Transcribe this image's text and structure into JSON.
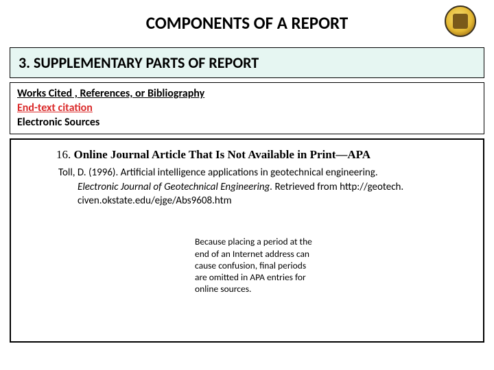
{
  "colors": {
    "background": "#ffffff",
    "text": "#000000",
    "section_bg": "#e6f6f2",
    "border": "#000000",
    "accent_red": "#da2a2a",
    "logo_gold_light": "#f8e27a",
    "logo_gold_mid": "#e4b832",
    "logo_gold_dark": "#a87a1a"
  },
  "header": {
    "title": "COMPONENTS OF A REPORT"
  },
  "section": {
    "heading": "3. SUPPLEMENTARY PARTS OF REPORT"
  },
  "subheader": {
    "line1": "Works Cited , References, or Bibliography",
    "line2": "End-text citation",
    "line3": "Electronic Sources"
  },
  "entry": {
    "number": "16.  ",
    "title": "Online Journal Article That Is Not Available in Print—APA",
    "citation_author_line": "Toll, D. (1996). Artificial intelligence applications in geotechnical engineering.",
    "citation_journal": "Electronic Journal of Geotechnical Engineering.",
    "citation_retrieved": " Retrieved from http://geotech.",
    "citation_url_tail": "civen.okstate.edu/ejge/Abs9608.htm"
  },
  "note": {
    "text": "Because placing a period at the end of an Internet address can cause confusion, final periods are omitted in APA entries for online sources."
  }
}
